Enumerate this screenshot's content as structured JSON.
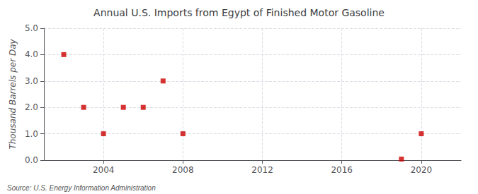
{
  "chart_data": {
    "type": "scatter",
    "title": "Annual U.S. Imports from Egypt of Finished Motor Gasoline",
    "ylabel": "Thousand Barrels per Day",
    "x": [
      2002,
      2003,
      2004,
      2005,
      2006,
      2007,
      2008,
      2019,
      2020
    ],
    "values": [
      4.0,
      2.0,
      1.0,
      2.0,
      2.0,
      3.0,
      1.0,
      0.04,
      1.0
    ],
    "color": "#cc0000",
    "marker": "square",
    "xlim": [
      2001,
      2022
    ],
    "xticks": [
      2004,
      2008,
      2012,
      2016,
      2020
    ],
    "ylim": [
      0.0,
      5.0
    ],
    "yticks": [
      {
        "value": 0.0,
        "label": "0.0"
      },
      {
        "value": 1.0,
        "label": "1.0"
      },
      {
        "value": 2.0,
        "label": "2.0"
      },
      {
        "value": 3.0,
        "label": "3.0"
      },
      {
        "value": 4.0,
        "label": "4.0"
      },
      {
        "value": 5.0,
        "label": "5.0"
      }
    ],
    "grid": true,
    "annotations": [
      "Source: U.S. Energy Information Administration"
    ]
  }
}
